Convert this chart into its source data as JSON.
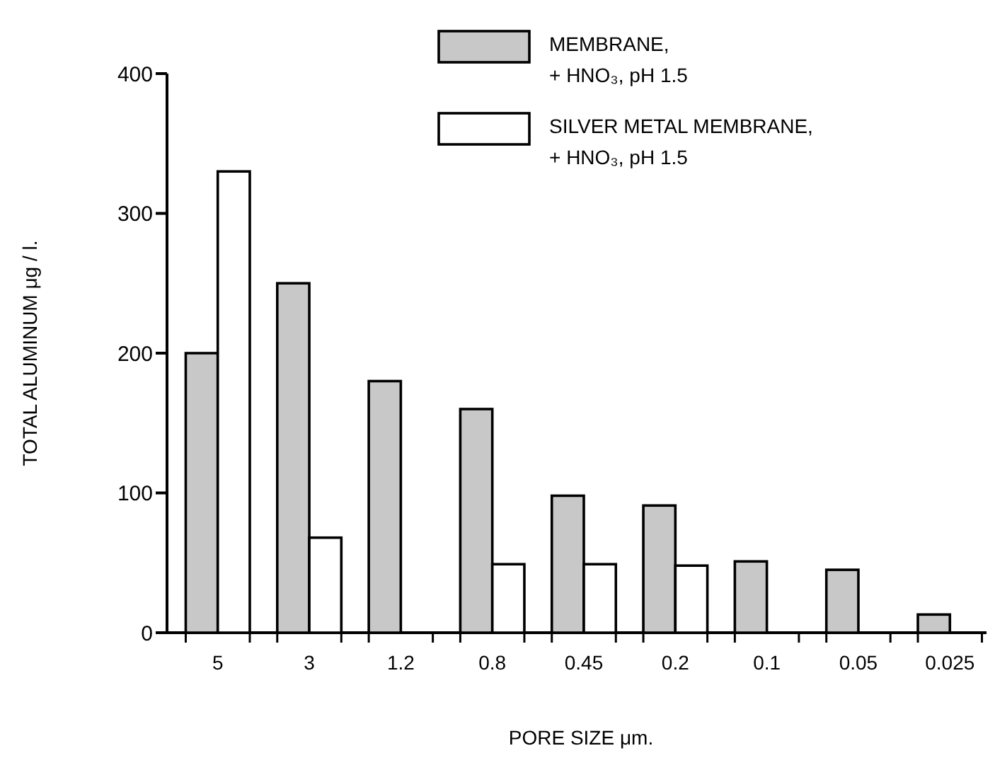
{
  "chart_data": {
    "type": "bar",
    "xlabel": "PORE SIZE μm.",
    "ylabel": "TOTAL ALUMINUM μg / l.",
    "categories": [
      "5",
      "3",
      "1.2",
      "0.8",
      "0.45",
      "0.2",
      "0.1",
      "0.05",
      "0.025"
    ],
    "series": [
      {
        "name": "MEMBRANE, + HNO₃, pH 1.5",
        "color": "#c8c8c8",
        "values": [
          200,
          250,
          180,
          160,
          98,
          91,
          51,
          45,
          13
        ]
      },
      {
        "name": "SILVER METAL MEMBRANE, + HNO₃, pH 1.5",
        "color": "#ffffff",
        "values": [
          330,
          68,
          null,
          49,
          49,
          48,
          null,
          null,
          null
        ]
      }
    ],
    "ylim": [
      0,
      400
    ],
    "yticks": [
      0,
      100,
      200,
      300,
      400
    ],
    "legend": "top right"
  }
}
